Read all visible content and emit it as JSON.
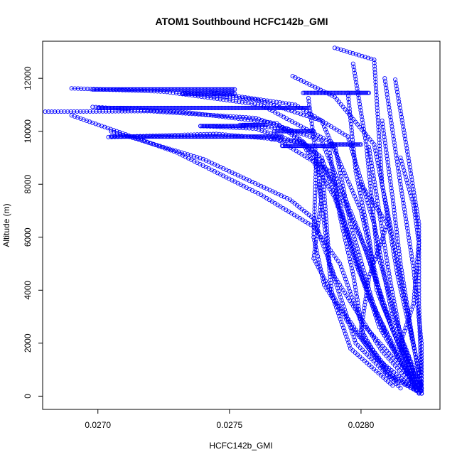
{
  "chart_data": {
    "type": "scatter",
    "title": "ATOM1 Southbound HCFC142b_GMI",
    "xlabel": "HCFC142b_GMI",
    "ylabel": "Altitude (m)",
    "xlim": [
      0.02679,
      0.0283
    ],
    "ylim": [
      -500,
      13400
    ],
    "x_ticks": [
      0.027,
      0.0275,
      0.028
    ],
    "x_tick_labels": [
      "0.0270",
      "0.0275",
      "0.0280"
    ],
    "y_ticks": [
      0,
      2000,
      4000,
      6000,
      8000,
      10000,
      12000
    ],
    "y_tick_labels": [
      "0",
      "2000",
      "4000",
      "6000",
      "8000",
      "10000",
      "12000"
    ],
    "grid": false,
    "marker": "open-circle",
    "color": "#0000ff",
    "profiles": [
      {
        "points": [
          [
            0.0268,
            10740
          ],
          [
            0.0272,
            10760
          ],
          [
            0.0276,
            10500
          ],
          [
            0.02785,
            9650
          ],
          [
            0.028,
            6000
          ],
          [
            0.02812,
            2500
          ],
          [
            0.02823,
            100
          ]
        ]
      },
      {
        "points": [
          [
            0.0269,
            10600
          ],
          [
            0.0273,
            9200
          ],
          [
            0.02762,
            7600
          ],
          [
            0.02782,
            6400
          ],
          [
            0.02792,
            5000
          ],
          [
            0.028,
            2800
          ],
          [
            0.02818,
            800
          ]
        ]
      },
      {
        "points": [
          [
            0.02705,
            10000
          ],
          [
            0.0274,
            8950
          ],
          [
            0.02773,
            7420
          ],
          [
            0.02782,
            6700
          ],
          [
            0.0279,
            4500
          ],
          [
            0.02808,
            1700
          ],
          [
            0.02822,
            150
          ]
        ]
      },
      {
        "points": [
          [
            0.0269,
            11620
          ],
          [
            0.02725,
            11500
          ],
          [
            0.02762,
            11000
          ],
          [
            0.0279,
            9500
          ],
          [
            0.02796,
            6500
          ],
          [
            0.02806,
            3000
          ],
          [
            0.0282,
            400
          ]
        ]
      },
      {
        "points": [
          [
            0.02698,
            10920
          ],
          [
            0.02735,
            10700
          ],
          [
            0.02768,
            10300
          ],
          [
            0.02785,
            9000
          ],
          [
            0.02788,
            5000
          ],
          [
            0.02798,
            2000
          ],
          [
            0.02815,
            300
          ]
        ]
      },
      {
        "points": [
          [
            0.02704,
            9780
          ],
          [
            0.02745,
            9900
          ],
          [
            0.02768,
            9700
          ],
          [
            0.02788,
            8500
          ],
          [
            0.02802,
            5500
          ],
          [
            0.02812,
            2500
          ],
          [
            0.02823,
            200
          ]
        ]
      },
      {
        "points": [
          [
            0.02733,
            11440
          ],
          [
            0.0276,
            11200
          ],
          [
            0.02785,
            10400
          ],
          [
            0.028,
            7000
          ],
          [
            0.02808,
            3500
          ],
          [
            0.0282,
            600
          ]
        ]
      },
      {
        "points": [
          [
            0.02743,
            11470
          ],
          [
            0.02775,
            11000
          ],
          [
            0.02795,
            9800
          ],
          [
            0.02805,
            6500
          ],
          [
            0.02812,
            3000
          ],
          [
            0.02822,
            400
          ]
        ]
      },
      {
        "points": [
          [
            0.02739,
            10200
          ],
          [
            0.0276,
            10100
          ],
          [
            0.02778,
            9500
          ],
          [
            0.0279,
            7500
          ],
          [
            0.02803,
            3700
          ],
          [
            0.02821,
            250
          ]
        ]
      },
      {
        "points": [
          [
            0.02754,
            10240
          ],
          [
            0.02772,
            10100
          ],
          [
            0.02785,
            9000
          ],
          [
            0.02795,
            6200
          ],
          [
            0.02807,
            2600
          ],
          [
            0.02822,
            150
          ]
        ]
      },
      {
        "points": [
          [
            0.02766,
            9700
          ],
          [
            0.02778,
            9600
          ],
          [
            0.0279,
            8000
          ],
          [
            0.02798,
            5000
          ],
          [
            0.02812,
            1800
          ],
          [
            0.02822,
            100
          ]
        ]
      },
      {
        "points": [
          [
            0.02774,
            12080
          ],
          [
            0.0279,
            11300
          ],
          [
            0.02805,
            9500
          ],
          [
            0.02812,
            6000
          ],
          [
            0.02818,
            3000
          ],
          [
            0.02823,
            300
          ]
        ]
      },
      {
        "points": [
          [
            0.0279,
            13150
          ],
          [
            0.02805,
            12700
          ],
          [
            0.02808,
            8000
          ],
          [
            0.02814,
            4500
          ],
          [
            0.02822,
            1000
          ],
          [
            0.02823,
            100
          ]
        ]
      },
      {
        "points": [
          [
            0.02797,
            12550
          ],
          [
            0.02802,
            9500
          ],
          [
            0.02806,
            5500
          ],
          [
            0.02816,
            2000
          ],
          [
            0.02823,
            100
          ]
        ]
      },
      {
        "points": [
          [
            0.02809,
            12000
          ],
          [
            0.02815,
            8000
          ],
          [
            0.0282,
            4800
          ],
          [
            0.02823,
            2000
          ],
          [
            0.02823,
            200
          ]
        ]
      },
      {
        "points": [
          [
            0.02813,
            11950
          ],
          [
            0.02818,
            9000
          ],
          [
            0.02822,
            6500
          ],
          [
            0.02822,
            3500
          ],
          [
            0.02823,
            300
          ]
        ]
      },
      {
        "points": [
          [
            0.0278,
            11250
          ],
          [
            0.02785,
            7500
          ],
          [
            0.02782,
            5200
          ],
          [
            0.02791,
            3500
          ],
          [
            0.02805,
            1500
          ],
          [
            0.0282,
            300
          ]
        ]
      },
      {
        "points": [
          [
            0.02783,
            9000
          ],
          [
            0.02782,
            6000
          ],
          [
            0.02786,
            4200
          ],
          [
            0.02795,
            2800
          ],
          [
            0.0281,
            900
          ],
          [
            0.02821,
            200
          ]
        ]
      },
      {
        "points": [
          [
            0.02795,
            11450
          ],
          [
            0.02798,
            8500
          ],
          [
            0.02803,
            6000
          ],
          [
            0.02806,
            4000
          ],
          [
            0.02816,
            1500
          ],
          [
            0.02823,
            100
          ]
        ]
      },
      {
        "points": [
          [
            0.02808,
            10400
          ],
          [
            0.02812,
            7500
          ],
          [
            0.02815,
            5000
          ],
          [
            0.02819,
            2500
          ],
          [
            0.02823,
            300
          ]
        ]
      },
      {
        "points": [
          [
            0.02815,
            9000
          ],
          [
            0.0282,
            7200
          ],
          [
            0.02822,
            5800
          ],
          [
            0.0282,
            3500
          ],
          [
            0.02815,
            2000
          ],
          [
            0.0282,
            500
          ]
        ]
      },
      {
        "points": [
          [
            0.028,
            8000
          ],
          [
            0.0281,
            6500
          ],
          [
            0.02803,
            4500
          ],
          [
            0.028,
            2500
          ],
          [
            0.0281,
            800
          ],
          [
            0.02822,
            150
          ]
        ]
      },
      {
        "points": [
          [
            0.02788,
            9300
          ],
          [
            0.02792,
            6800
          ],
          [
            0.02797,
            4600
          ],
          [
            0.02801,
            2200
          ],
          [
            0.02814,
            500
          ]
        ]
      },
      {
        "points": [
          [
            0.02784,
            8000
          ],
          [
            0.02787,
            5800
          ],
          [
            0.02789,
            3800
          ],
          [
            0.02796,
            1800
          ],
          [
            0.02812,
            400
          ]
        ]
      },
      {
        "points": [
          [
            0.02803,
            9400
          ],
          [
            0.02807,
            6900
          ],
          [
            0.02811,
            4400
          ],
          [
            0.02815,
            2300
          ],
          [
            0.02823,
            300
          ]
        ]
      }
    ],
    "flight_legs": [
      {
        "x": [
          0.02698,
          0.02752
        ],
        "y": 11580
      },
      {
        "x": [
          0.027,
          0.0278
        ],
        "y": 10880
      },
      {
        "x": [
          0.02705,
          0.0277
        ],
        "y": 9800
      },
      {
        "x": [
          0.02732,
          0.02752
        ],
        "y": 11420
      },
      {
        "x": [
          0.02739,
          0.02756
        ],
        "y": 10200
      },
      {
        "x": [
          0.02755,
          0.02764
        ],
        "y": 10240
      },
      {
        "x": [
          0.0277,
          0.0279
        ],
        "y": 9450
      },
      {
        "x": [
          0.02788,
          0.028
        ],
        "y": 9500
      },
      {
        "x": [
          0.02778,
          0.02803
        ],
        "y": 11450
      },
      {
        "x": [
          0.02767,
          0.02782
        ],
        "y": 10000
      }
    ]
  }
}
